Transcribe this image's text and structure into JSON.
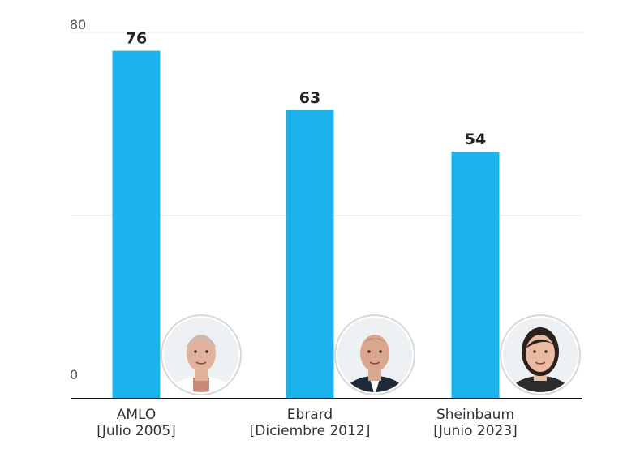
{
  "chart_data": {
    "type": "bar",
    "title": "",
    "xlabel": "",
    "ylabel": "",
    "ylim": [
      0,
      80
    ],
    "y_ticks": [
      0,
      80
    ],
    "grid": true,
    "categories": [
      "AMLO",
      "Ebrard",
      "Sheinbaum"
    ],
    "category_sublabels": [
      "[Julio 2005]",
      "[Diciembre 2012]",
      "[Junio 2023]"
    ],
    "values": [
      76,
      63,
      54
    ],
    "value_labels": [
      "76",
      "63",
      "54"
    ],
    "bar_color": "#1cb3ec",
    "portrait_icons": [
      "portrait-amlo-icon",
      "portrait-ebrard-icon",
      "portrait-sheinbaum-icon"
    ]
  }
}
